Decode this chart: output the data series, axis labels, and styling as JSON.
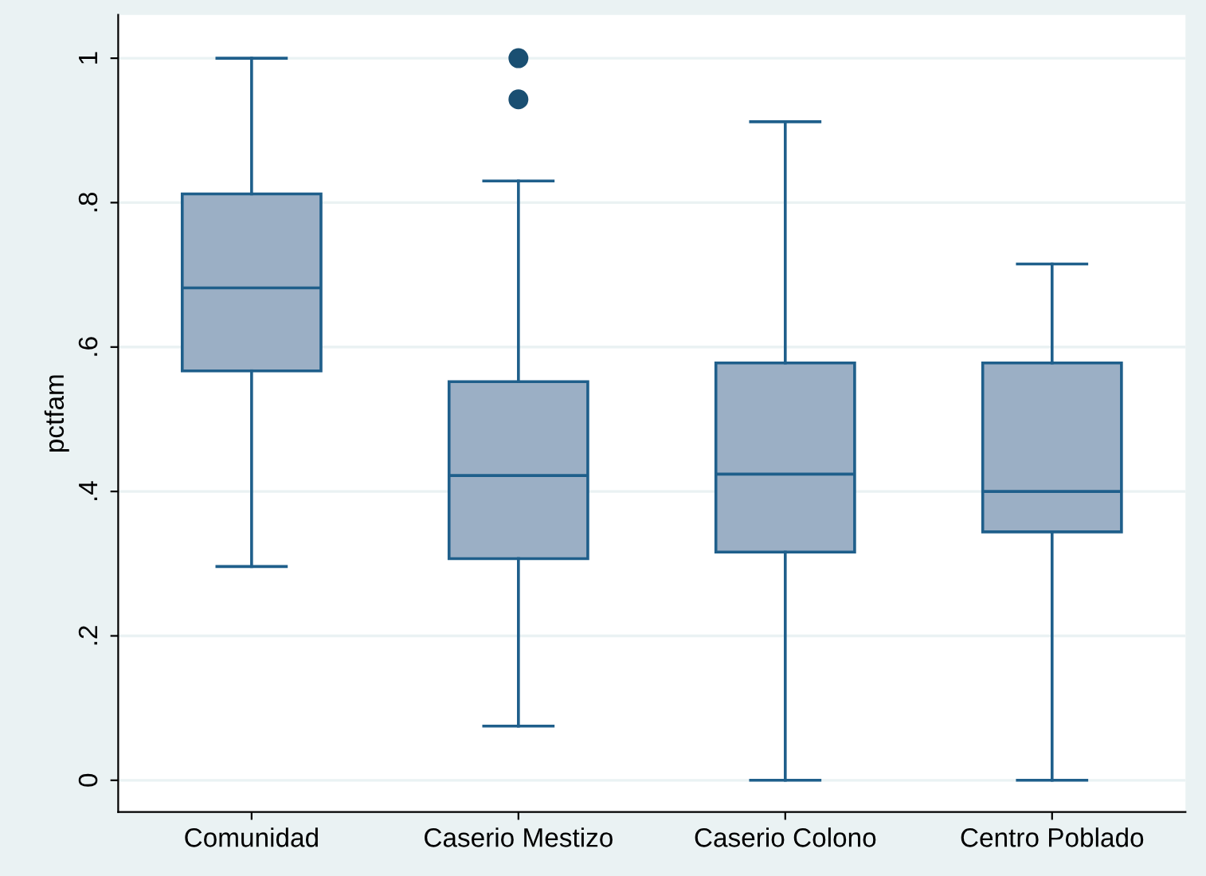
{
  "chart_data": {
    "type": "box",
    "ylabel": "pctfam",
    "categories": [
      "Comunidad",
      "Caserio Mestizo",
      "Caserio Colono",
      "Centro Poblado"
    ],
    "series": [
      {
        "color": "#9bafc5",
        "boxes": [
          {
            "low": 0.296,
            "q1": 0.567,
            "median": 0.682,
            "q3": 0.812,
            "high": 1.0
          },
          {
            "low": 0.075,
            "q1": 0.307,
            "median": 0.422,
            "q3": 0.552,
            "high": 0.83,
            "outliers": [
              0.943,
              1.0
            ]
          },
          {
            "low": 0.0,
            "q1": 0.316,
            "median": 0.424,
            "q3": 0.578,
            "high": 0.912
          },
          {
            "low": 0.0,
            "q1": 0.344,
            "median": 0.4,
            "q3": 0.578,
            "high": 0.715
          }
        ]
      }
    ],
    "ylim": [
      -0.044,
      1.06
    ],
    "yticks": [
      0,
      {
        "value": 0.2,
        "label": ".2"
      },
      {
        "value": 0.4,
        "label": ".4"
      },
      {
        "value": 0.6,
        "label": ".6"
      },
      {
        "value": 0.8,
        "label": ".8"
      },
      1
    ],
    "grid": "y",
    "legend": false
  }
}
